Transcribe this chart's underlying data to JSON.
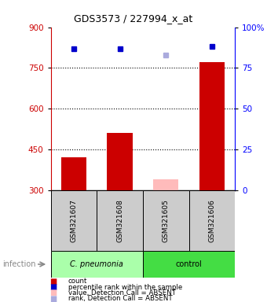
{
  "title": "GDS3573 / 227994_x_at",
  "samples": [
    "GSM321607",
    "GSM321608",
    "GSM321605",
    "GSM321606"
  ],
  "bar_bottom": 300,
  "counts": [
    420,
    510,
    340,
    770
  ],
  "counts_absent": [
    null,
    null,
    true,
    null
  ],
  "percentile_ranks": [
    87,
    87,
    83,
    88
  ],
  "percentile_absent": [
    null,
    null,
    true,
    null
  ],
  "ylim_left": [
    300,
    900
  ],
  "ylim_right": [
    0,
    100
  ],
  "yticks_left": [
    300,
    450,
    600,
    750,
    900
  ],
  "yticks_right": [
    0,
    25,
    50,
    75,
    100
  ],
  "ytick_right_labels": [
    "0",
    "25",
    "50",
    "75",
    "100%"
  ],
  "grid_lines": [
    450,
    600,
    750
  ],
  "bar_color": "#cc0000",
  "bar_color_absent": "#ffbbbb",
  "dot_color": "#0000cc",
  "dot_color_absent": "#aaaadd",
  "group1_color": "#aaffaa",
  "group2_color": "#44dd44",
  "group1_label": "C. pneumonia",
  "group2_label": "control",
  "legend_labels": [
    "count",
    "percentile rank within the sample",
    "value, Detection Call = ABSENT",
    "rank, Detection Call = ABSENT"
  ],
  "legend_colors": [
    "#cc0000",
    "#0000cc",
    "#ffbbbb",
    "#aaaadd"
  ]
}
